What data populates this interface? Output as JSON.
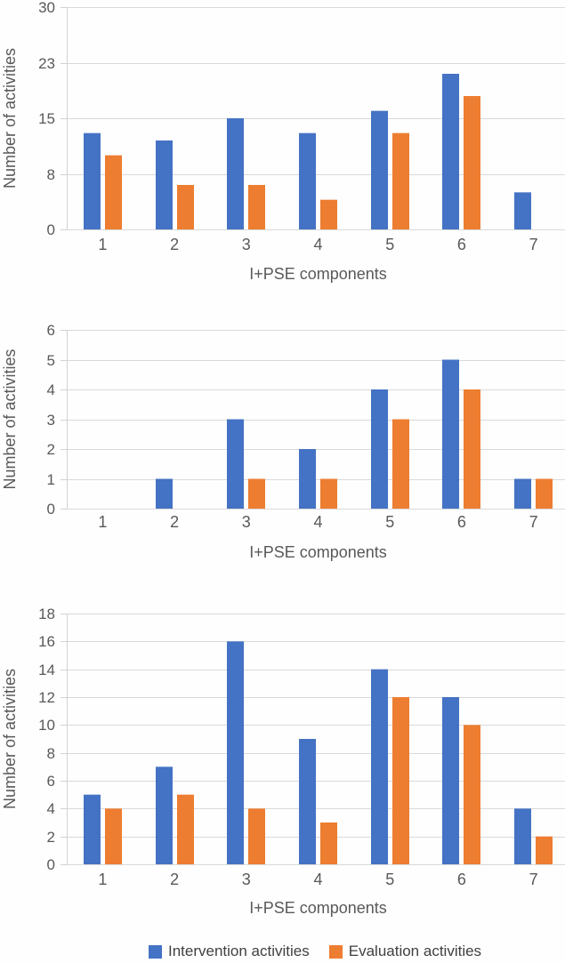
{
  "figure": {
    "background": "#fdfefd",
    "text_color": "#595959",
    "gridline_color": "#d9d9d9",
    "axis_line_color": "#d2d2d2"
  },
  "legend": {
    "position": "bottom",
    "items": [
      {
        "label": "Intervention activities",
        "color": "#4472C4"
      },
      {
        "label": "Evaluation activities",
        "color": "#ED7D31"
      }
    ]
  },
  "chart_data": [
    {
      "type": "bar",
      "title": "",
      "ylabel": "Number of activities",
      "xlabel": "I+PSE components",
      "categories": [
        "1",
        "2",
        "3",
        "4",
        "5",
        "6",
        "7"
      ],
      "series": [
        {
          "name": "Intervention activities",
          "color": "#4472C4",
          "values": [
            13,
            12,
            15,
            13,
            16,
            21,
            5
          ]
        },
        {
          "name": "Evaluation activities",
          "color": "#ED7D31",
          "values": [
            10,
            6,
            6,
            4,
            13,
            18,
            0
          ]
        }
      ],
      "ylim": [
        0,
        30
      ],
      "yticks": [
        {
          "value": 0,
          "label": "0"
        },
        {
          "value": 7.5,
          "label": "8"
        },
        {
          "value": 15,
          "label": "15"
        },
        {
          "value": 22.5,
          "label": "23"
        },
        {
          "value": 30,
          "label": "30"
        }
      ],
      "grid": true,
      "legend_position": "none"
    },
    {
      "type": "bar",
      "title": "",
      "ylabel": "Number of activities",
      "xlabel": "I+PSE components",
      "categories": [
        "1",
        "2",
        "3",
        "4",
        "5",
        "6",
        "7"
      ],
      "series": [
        {
          "name": "Intervention activities",
          "color": "#4472C4",
          "values": [
            0,
            1,
            3,
            2,
            4,
            5,
            1
          ]
        },
        {
          "name": "Evaluation activities",
          "color": "#ED7D31",
          "values": [
            0,
            0,
            1,
            1,
            3,
            4,
            1
          ]
        }
      ],
      "ylim": [
        0,
        6
      ],
      "yticks": [
        {
          "value": 0,
          "label": "0"
        },
        {
          "value": 1,
          "label": "1"
        },
        {
          "value": 2,
          "label": "2"
        },
        {
          "value": 3,
          "label": "3"
        },
        {
          "value": 4,
          "label": "4"
        },
        {
          "value": 5,
          "label": "5"
        },
        {
          "value": 6,
          "label": "6"
        }
      ],
      "grid": true,
      "legend_position": "none"
    },
    {
      "type": "bar",
      "title": "",
      "ylabel": "Number of activities",
      "xlabel": "I+PSE components",
      "categories": [
        "1",
        "2",
        "3",
        "4",
        "5",
        "6",
        "7"
      ],
      "series": [
        {
          "name": "Intervention activities",
          "color": "#4472C4",
          "values": [
            5,
            7,
            16,
            9,
            14,
            12,
            4
          ]
        },
        {
          "name": "Evaluation activities",
          "color": "#ED7D31",
          "values": [
            4,
            5,
            4,
            3,
            12,
            10,
            2
          ]
        }
      ],
      "ylim": [
        0,
        18
      ],
      "yticks": [
        {
          "value": 0,
          "label": "0"
        },
        {
          "value": 2,
          "label": "2"
        },
        {
          "value": 4,
          "label": "4"
        },
        {
          "value": 6,
          "label": "6"
        },
        {
          "value": 8,
          "label": "8"
        },
        {
          "value": 10,
          "label": "10"
        },
        {
          "value": 12,
          "label": "12"
        },
        {
          "value": 14,
          "label": "14"
        },
        {
          "value": 16,
          "label": "16"
        },
        {
          "value": 18,
          "label": "18"
        }
      ],
      "grid": true,
      "legend_position": "none"
    }
  ]
}
